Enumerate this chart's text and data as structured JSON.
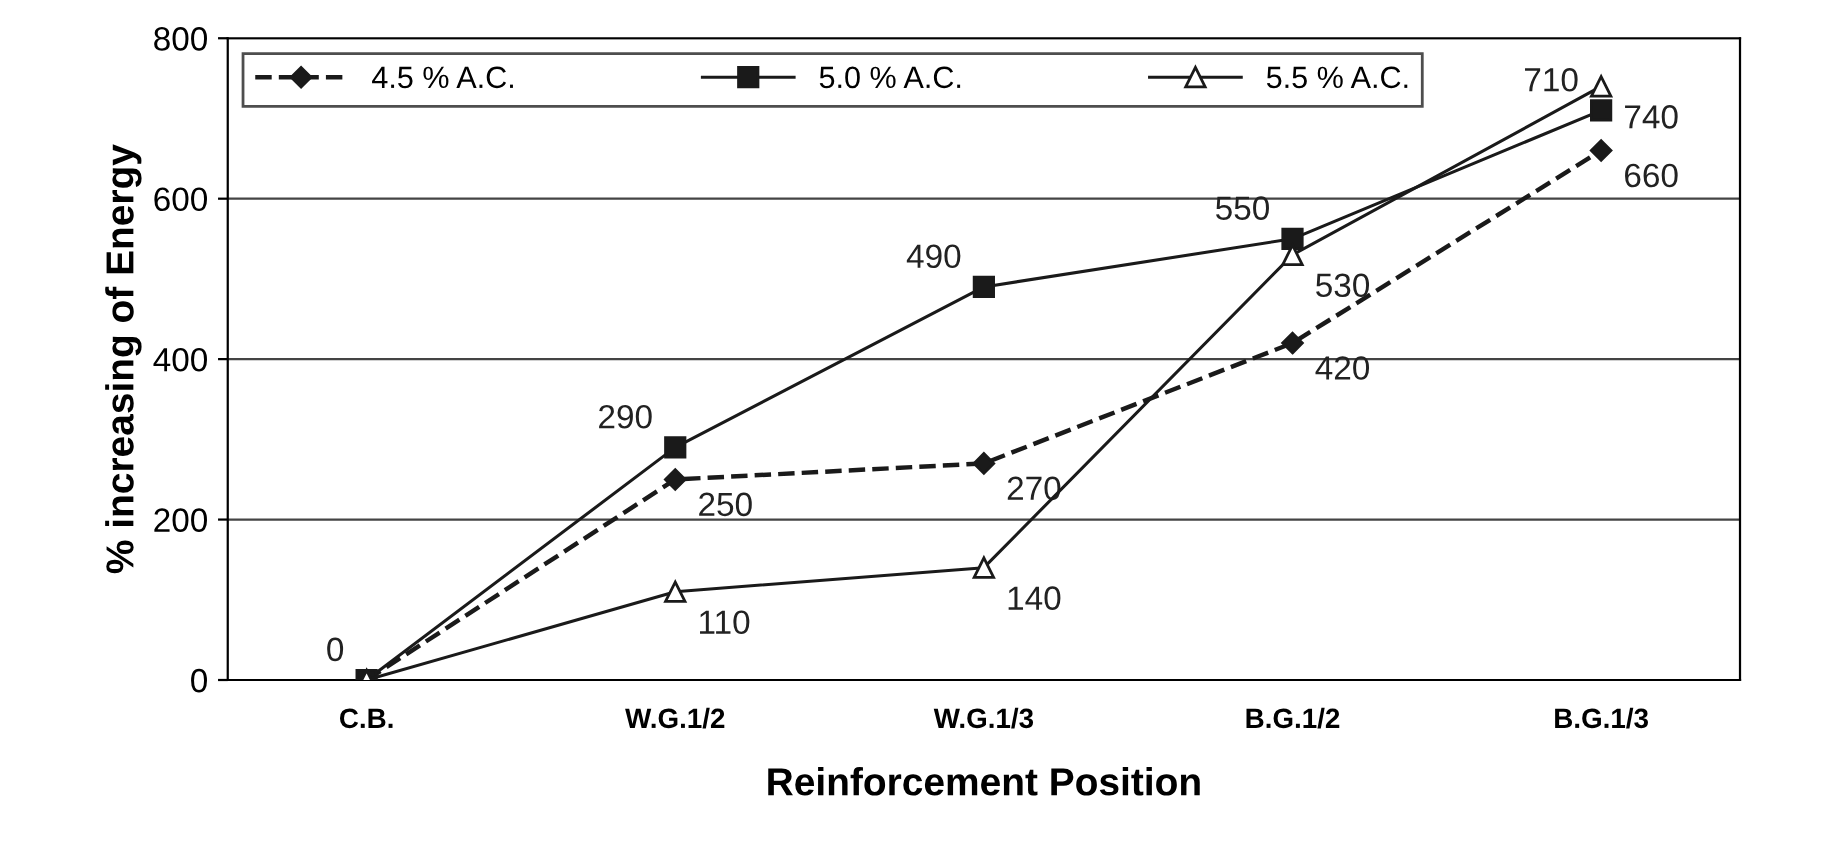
{
  "chart_data": {
    "type": "line",
    "xlabel": "Reinforcement Position",
    "ylabel": "% increasing of Energy",
    "categories": [
      "C.B.",
      "W.G.1/2",
      "W.G.1/3",
      "B.G.1/2",
      "B.G.1/3"
    ],
    "series": [
      {
        "name": "4.5 % A.C.",
        "color": "#1a1a1a",
        "marker": "diamond",
        "line_style": "dashed",
        "values": [
          0,
          250,
          270,
          420,
          660
        ],
        "value_labels": [
          null,
          "250",
          "270",
          "420",
          "660"
        ]
      },
      {
        "name": "5.0 % A.C.",
        "color": "#1a1a1a",
        "marker": "square",
        "line_style": "solid",
        "values": [
          0,
          290,
          490,
          550,
          710
        ],
        "value_labels": [
          "0",
          "290",
          "490",
          "550",
          "710"
        ]
      },
      {
        "name": "5.5 % A.C.",
        "color": "#1a1a1a",
        "marker": "triangle",
        "line_style": "solid",
        "values": [
          0,
          110,
          140,
          530,
          740
        ],
        "value_labels": [
          null,
          "110",
          "140",
          "530",
          "740"
        ]
      }
    ],
    "ylim": [
      0,
      800
    ],
    "yticks": [
      0,
      200,
      400,
      600,
      800
    ],
    "grid": "y",
    "legend": "top"
  }
}
